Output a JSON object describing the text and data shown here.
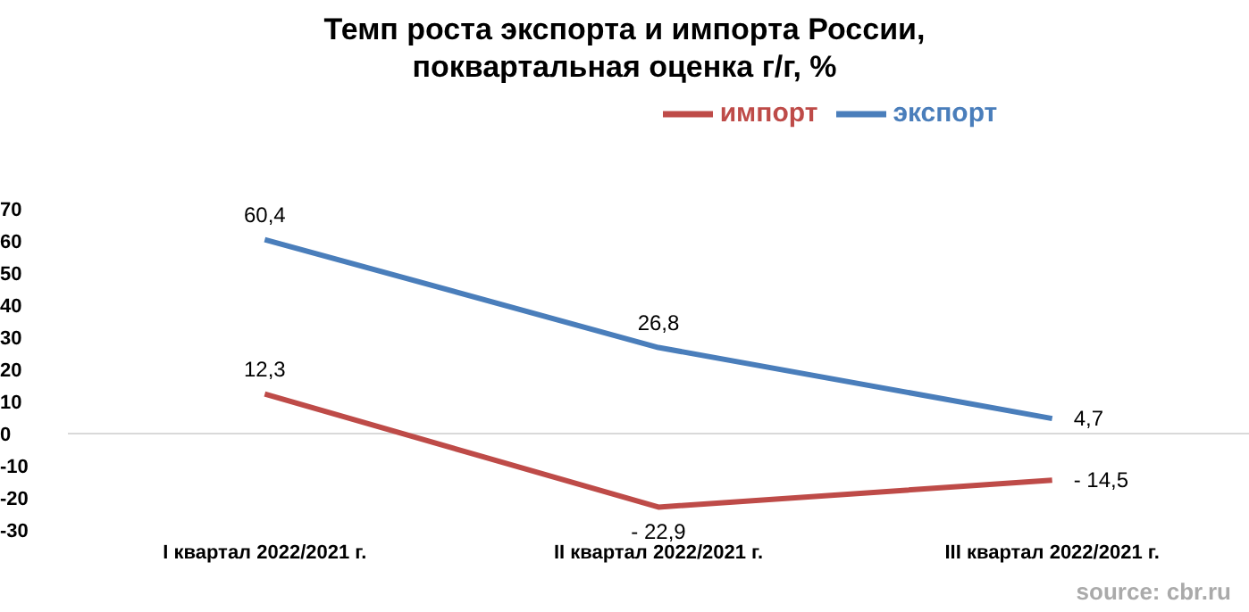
{
  "chart_data": {
    "type": "line",
    "title": "Темп роста экспорта и импорта России,\nпоквартальная оценка г/г, %",
    "categories": [
      "I квартал 2022/2021 г.",
      "II квартал 2022/2021 г.",
      "III квартал 2022/2021 г."
    ],
    "series": [
      {
        "name": "экспорт",
        "color": "#4a7ebb",
        "values": [
          60.4,
          26.8,
          4.7
        ],
        "value_labels": [
          "60,4",
          "26,8",
          "4,7"
        ]
      },
      {
        "name": "импорт",
        "color": "#be4b48",
        "values": [
          12.3,
          -22.9,
          -14.5
        ],
        "value_labels": [
          "12,3",
          "- 22,9",
          "- 14,5"
        ]
      }
    ],
    "ylim": [
      -30,
      70
    ],
    "yticks": [
      -30,
      -20,
      -10,
      0,
      10,
      20,
      30,
      40,
      50,
      60,
      70
    ],
    "ref_lines": [
      {
        "axis": "y",
        "value": 0,
        "color": "#d9d9d9"
      }
    ],
    "grid": false,
    "legend": "top",
    "marker": "none",
    "line_style": "solid",
    "annotations": [
      "source: cbr.ru"
    ]
  }
}
